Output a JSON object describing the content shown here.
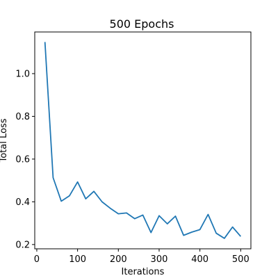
{
  "chart_data": {
    "type": "line",
    "title": "500 Epochs",
    "xlabel": "Iterations",
    "ylabel": "Total Loss",
    "xlim": [
      -5,
      525
    ],
    "ylim": [
      0.18,
      1.195
    ],
    "x_ticks": [
      0,
      100,
      200,
      300,
      400,
      500
    ],
    "y_ticks": [
      0.2,
      0.4,
      0.6,
      0.8,
      1.0
    ],
    "y_tick_labels": [
      "0.2",
      "0.4",
      "0.6",
      "0.8",
      "1.0"
    ],
    "grid": false,
    "line_color": "#1f77b4",
    "series": [
      {
        "x": [
          20,
          40,
          60,
          80,
          100,
          120,
          140,
          160,
          180,
          200,
          220,
          240,
          260,
          280,
          300,
          320,
          340,
          360,
          380,
          400,
          420,
          440,
          460,
          480,
          500
        ],
        "y": [
          1.148,
          0.513,
          0.403,
          0.428,
          0.493,
          0.414,
          0.449,
          0.4,
          0.37,
          0.344,
          0.348,
          0.321,
          0.338,
          0.256,
          0.335,
          0.297,
          0.333,
          0.243,
          0.258,
          0.27,
          0.341,
          0.253,
          0.229,
          0.282,
          0.238
        ]
      }
    ]
  }
}
